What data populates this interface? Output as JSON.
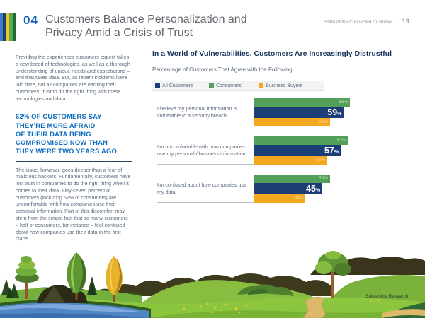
{
  "header": {
    "section_number": "04",
    "title_line1": "Customers Balance Personalization and",
    "title_line2": "Privacy Amid a Crisis of Trust",
    "report_name": "State of the Connected Customer",
    "page_number": "19",
    "stripe_colors": [
      "#3d7dc2",
      "#1d3e6f",
      "#f4c431",
      "#57aa4a",
      "#1f6b37"
    ]
  },
  "left_column": {
    "paragraph1": "Providing the experiences customers expect takes a new breed of technologies, as well as a thorough understanding of unique needs and expectations – and that takes data. But, as recent incidents have laid bare, not all companies are earning their customers' trust to do the right thing with these technologies and data.",
    "callout": "62% OF CUSTOMERS SAY\nTHEY'RE MORE AFRAID\nOF THEIR DATA BEING\nCOMPROMISED NOW THAN\nTHEY WERE TWO YEARS AGO.",
    "paragraph2": "The issue, however, goes deeper than a fear of malicious hackers. Fundamentally, customers have lost trust in companies to do the right thing when it comes to their data. Fifty-seven percent of customers (including 62% of consumers) are uncomfortable with how companies use their personal information. Part of this discomfort may stem from the simple fact that so many customers – half of consumers, for instance – feel confused about how companies use their data in the first place."
  },
  "chart_data": {
    "type": "bar",
    "orientation": "horizontal",
    "title": "In a World of Vulnerabilities, Customers Are Increasingly Distrustful",
    "subtitle": "Percentage of Customers That Agree with the Following",
    "unit": "%",
    "xlim": [
      0,
      100
    ],
    "grid": false,
    "legend_position": "top",
    "categories": [
      "I believe my personal information is vulnerable to a security breach",
      "I'm uncomfortable with how companies use my personal / business information",
      "I'm confused about how companies use my data"
    ],
    "series": [
      {
        "name": "All Customers",
        "color": "#1c3e77",
        "values": [
          59,
          57,
          45
        ]
      },
      {
        "name": "Consumers",
        "color": "#53a05a",
        "values": [
          63,
          62,
          50
        ]
      },
      {
        "name": "Business Buyers",
        "color": "#f3a81f",
        "values": [
          50,
          48,
          34
        ]
      }
    ],
    "emphasis_series": "All Customers",
    "bar_display_order": [
      "Consumers",
      "All Customers",
      "Business Buyers"
    ]
  },
  "footer": {
    "brand": "Salesforce Research"
  }
}
